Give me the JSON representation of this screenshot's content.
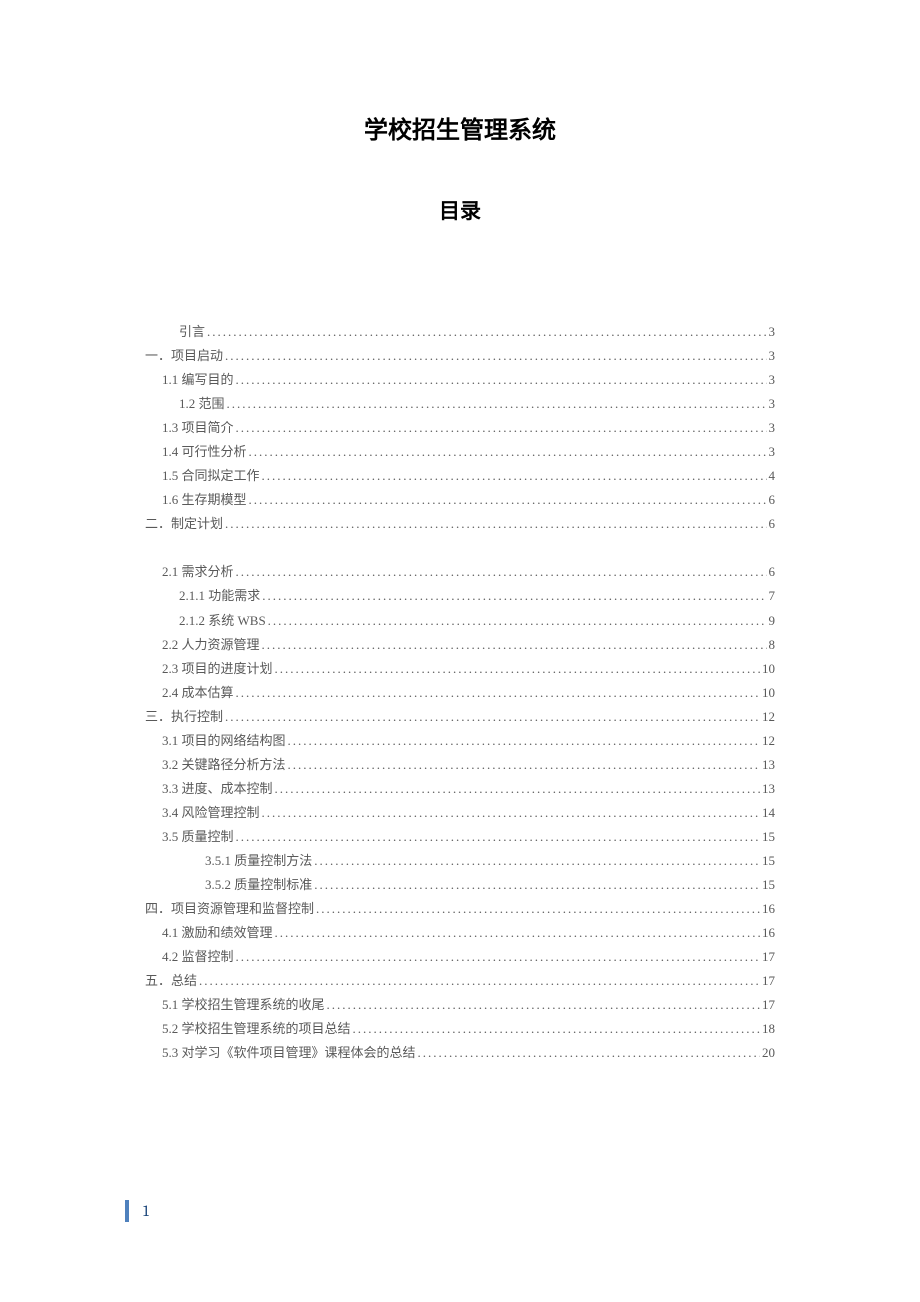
{
  "document": {
    "title": "学校招生管理系统",
    "subtitle": "目录",
    "page_number": "1",
    "colors": {
      "text_primary": "#000000",
      "text_toc": "#595959",
      "accent_bar": "#4f81bd",
      "page_num": "#1f497d",
      "background": "#ffffff"
    },
    "typography": {
      "title_fontsize": 24,
      "subtitle_fontsize": 21,
      "toc_fontsize": 13,
      "page_number_fontsize": 16
    },
    "toc_entries": [
      {
        "label": "引言",
        "page": "3",
        "level": 2
      },
      {
        "label": "一．项目启动",
        "page": "3",
        "level": 0
      },
      {
        "label": "1.1 编写目的",
        "page": "3",
        "level": 1
      },
      {
        "label": "1.2 范围",
        "page": "3",
        "level": 2
      },
      {
        "label": "1.3 项目简介",
        "page": "3",
        "level": 1
      },
      {
        "label": "1.4 可行性分析",
        "page": "3",
        "level": 1
      },
      {
        "label": "1.5 合同拟定工作",
        "page": "4",
        "level": 1
      },
      {
        "label": "1.6 生存期模型",
        "page": "6",
        "level": 1
      },
      {
        "label": "二．制定计划",
        "page": "6",
        "level": 0
      },
      {
        "label": "",
        "page": "",
        "level": -1
      },
      {
        "label": "2.1 需求分析",
        "page": "6",
        "level": 1
      },
      {
        "label": "2.1.1 功能需求",
        "page": "7",
        "level": 2
      },
      {
        "label": "2.1.2 系统 WBS",
        "page": "9",
        "level": 2
      },
      {
        "label": "2.2 人力资源管理",
        "page": "8",
        "level": 1
      },
      {
        "label": "2.3 项目的进度计划",
        "page": "10",
        "level": 1
      },
      {
        "label": "2.4 成本估算",
        "page": "10",
        "level": 1
      },
      {
        "label": "三．执行控制",
        "page": "12",
        "level": 0
      },
      {
        "label": "3.1 项目的网络结构图",
        "page": "12",
        "level": 1
      },
      {
        "label": "3.2 关键路径分析方法",
        "page": "13",
        "level": 1
      },
      {
        "label": "3.3 进度、成本控制",
        "page": "13",
        "level": 1
      },
      {
        "label": "3.4 风险管理控制",
        "page": "14",
        "level": 1
      },
      {
        "label": "3.5 质量控制",
        "page": "15",
        "level": 1
      },
      {
        "label": "3.5.1 质量控制方法",
        "page": "15",
        "level": 3
      },
      {
        "label": "3.5.2 质量控制标准",
        "page": "15",
        "level": 3
      },
      {
        "label": "四．项目资源管理和监督控制",
        "page": "16",
        "level": 0
      },
      {
        "label": "4.1 激励和绩效管理",
        "page": "16",
        "level": 1
      },
      {
        "label": "4.2 监督控制",
        "page": "17",
        "level": 1
      },
      {
        "label": "五．总结",
        "page": "17",
        "level": 0
      },
      {
        "label": "5.1 学校招生管理系统的收尾",
        "page": "17",
        "level": 1
      },
      {
        "label": "5.2 学校招生管理系统的项目总结",
        "page": "18",
        "level": 1
      },
      {
        "label": "5.3 对学习《软件项目管理》课程体会的总结",
        "page": "20",
        "level": 1
      }
    ]
  }
}
